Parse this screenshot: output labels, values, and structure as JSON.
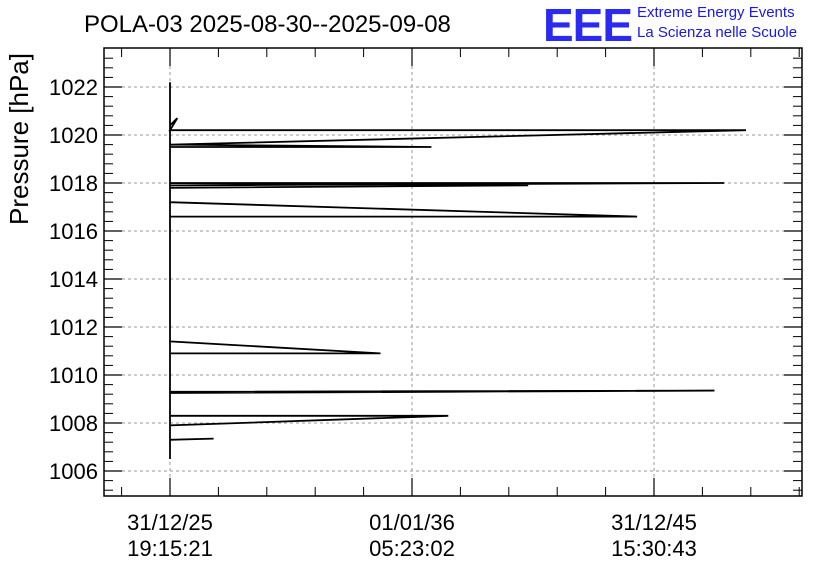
{
  "title": "POLA-03 2025-08-30--2025-09-08",
  "logo": {
    "mark": "EEE",
    "line1": "Extreme Energy Events",
    "line2": "La Scienza nelle Scuole",
    "color": "#1a1aee"
  },
  "chart_data": {
    "type": "line",
    "title": "POLA-03 2025-08-30--2025-09-08",
    "xlabel": "",
    "ylabel": "Pressure [hPa]",
    "ylim": [
      1004.9,
      1023.5
    ],
    "yticks": [
      1006,
      1008,
      1010,
      1012,
      1014,
      1016,
      1018,
      1020,
      1022
    ],
    "xticks": [
      {
        "date": "31/12/25",
        "time": "19:15:21"
      },
      {
        "date": "01/01/36",
        "time": "05:23:02"
      },
      {
        "date": "31/12/45",
        "time": "15:30:43"
      }
    ],
    "grid": true,
    "series": [
      {
        "color": "#000000",
        "points": [
          [
            0,
            1006.5
          ],
          [
            0,
            1022.2
          ],
          [
            0,
            1007.3
          ],
          [
            0.18,
            1007.35
          ],
          [
            0,
            1007.3
          ],
          [
            0,
            1007.9
          ],
          [
            1.15,
            1008.3
          ],
          [
            0,
            1008.3
          ],
          [
            0,
            1009.3
          ],
          [
            2.25,
            1009.35
          ],
          [
            0,
            1009.25
          ],
          [
            0,
            1010.9
          ],
          [
            0.87,
            1010.9
          ],
          [
            0,
            1011.4
          ],
          [
            0,
            1016.6
          ],
          [
            1.93,
            1016.6
          ],
          [
            0,
            1017.2
          ],
          [
            0,
            1017.8
          ],
          [
            1.48,
            1017.9
          ],
          [
            0,
            1018.0
          ],
          [
            2.29,
            1018.0
          ],
          [
            0,
            1017.9
          ],
          [
            0,
            1019.5
          ],
          [
            1.08,
            1019.5
          ],
          [
            0,
            1019.6
          ],
          [
            2.38,
            1020.2
          ],
          [
            0,
            1020.2
          ],
          [
            0.03,
            1020.7
          ],
          [
            0,
            1020.4
          ]
        ]
      }
    ]
  }
}
